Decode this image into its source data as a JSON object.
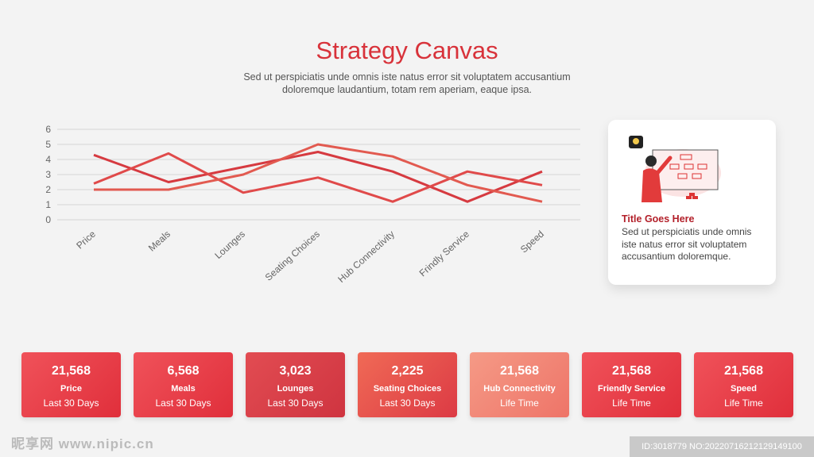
{
  "header": {
    "title": "Strategy Canvas",
    "subtitle": "Sed ut perspiciatis unde omnis iste natus error sit voluptatem accusantium doloremque laudantium, totam rem aperiam, eaque ipsa."
  },
  "chart_data": {
    "type": "line",
    "categories": [
      "Price",
      "Meals",
      "Lounges",
      "Seating Choices",
      "Hub Connectivity",
      "Frindly Service",
      "Speed"
    ],
    "series": [
      {
        "values": [
          4.3,
          2.5,
          3.5,
          4.5,
          3.2,
          1.2,
          3.2
        ],
        "color": "#d63a40"
      },
      {
        "values": [
          2.4,
          4.4,
          1.8,
          2.8,
          1.2,
          3.2,
          2.3
        ],
        "color": "#e04a4a"
      },
      {
        "values": [
          2.0,
          2.0,
          3.0,
          5.0,
          4.2,
          2.3,
          1.2
        ],
        "color": "#e25a50"
      }
    ],
    "yticks": [
      0,
      1,
      2,
      3,
      4,
      5,
      6
    ],
    "ylim": [
      0,
      6
    ],
    "grid": true
  },
  "card": {
    "title": "Title Goes Here",
    "text": "Sed ut perspiciatis unde omnis iste natus error sit voluptatem accusantium doloremque."
  },
  "stats": [
    {
      "value": "21,568",
      "label": "Price",
      "period": "Last 30 Days",
      "color_from": "#f0525a",
      "color_to": "#e02f3b"
    },
    {
      "value": "6,568",
      "label": "Meals",
      "period": "Last 30 Days",
      "color_from": "#f0525a",
      "color_to": "#e02f3b"
    },
    {
      "value": "3,023",
      "label": "Lounges",
      "period": "Last 30 Days",
      "color_from": "#e24c52",
      "color_to": "#cf3440"
    },
    {
      "value": "2,225",
      "label": "Seating Choices",
      "period": "Last 30 Days",
      "color_from": "#f06a56",
      "color_to": "#dc3a44"
    },
    {
      "value": "21,568",
      "label": "Hub Connectivity",
      "period": "Life Time",
      "color_from": "#f59a86",
      "color_to": "#ee7468"
    },
    {
      "value": "21,568",
      "label": "Friendly Service",
      "period": "Life Time",
      "color_from": "#f0525a",
      "color_to": "#e02f3b"
    },
    {
      "value": "21,568",
      "label": "Speed",
      "period": "Life Time",
      "color_from": "#f0525a",
      "color_to": "#e02f3b"
    }
  ],
  "watermark": {
    "left": "昵享网 www.nipic.cn",
    "right": "ID:3018779 NO:20220716212129149100"
  }
}
